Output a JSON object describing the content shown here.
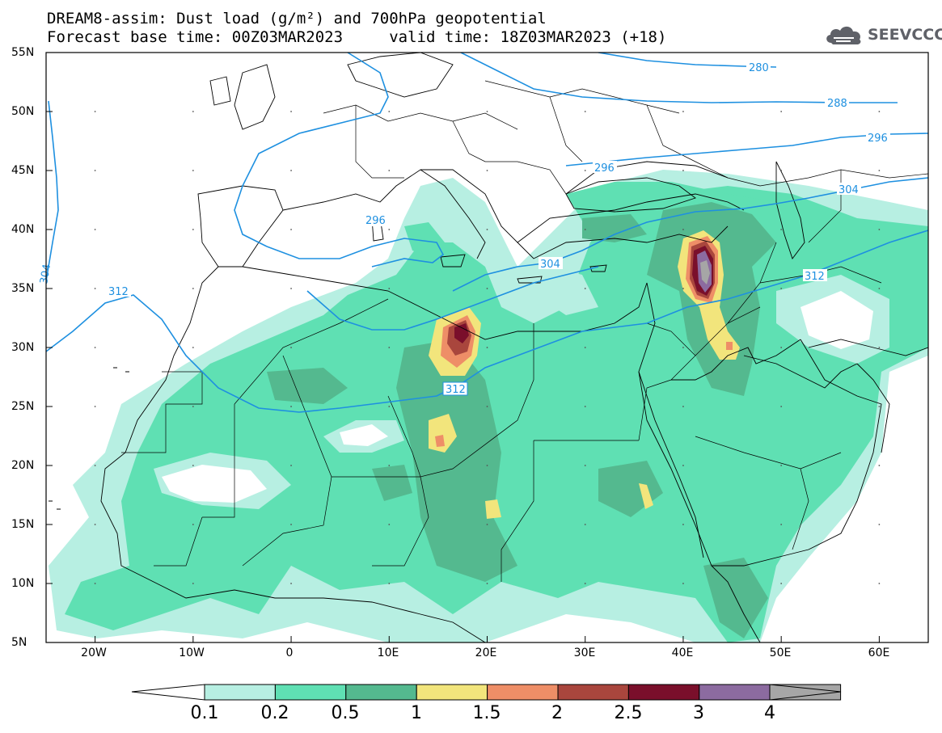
{
  "title": {
    "line1": "DREAM8-assim: Dust load (g/m²) and 700hPa geopotential",
    "line2": "Forecast base time: 00Z03MAR2023     valid time: 18Z03MAR2023 (+18)"
  },
  "logo": {
    "text": "SEEVCCC",
    "icon": "cloud-icon"
  },
  "axes": {
    "lat_labels": [
      "55N",
      "50N",
      "45N",
      "40N",
      "35N",
      "30N",
      "25N",
      "20N",
      "15N",
      "10N",
      "5N"
    ],
    "lon_labels": [
      "20W",
      "10W",
      "0",
      "10E",
      "20E",
      "30E",
      "40E",
      "50E",
      "60E"
    ],
    "lon_range": [
      -25,
      65
    ],
    "lat_range": [
      5,
      55
    ]
  },
  "contours": {
    "labels": [
      "280",
      "288",
      "296",
      "296",
      "296",
      "304",
      "304",
      "304",
      "312",
      "312",
      "312"
    ],
    "color": "#1e90e0"
  },
  "colorbar": {
    "labels": [
      "0.1",
      "0.2",
      "0.5",
      "1",
      "1.5",
      "2",
      "2.5",
      "3",
      "4"
    ],
    "colors": [
      "#b7efe2",
      "#5fe0b3",
      "#54b98f",
      "#f2e57c",
      "#ee8e67",
      "#a9463d",
      "#7a0f2b",
      "#8c6ba0",
      "#a6a6a6"
    ],
    "under_color": "#ffffff",
    "over_color": "#a6a6a6"
  }
}
